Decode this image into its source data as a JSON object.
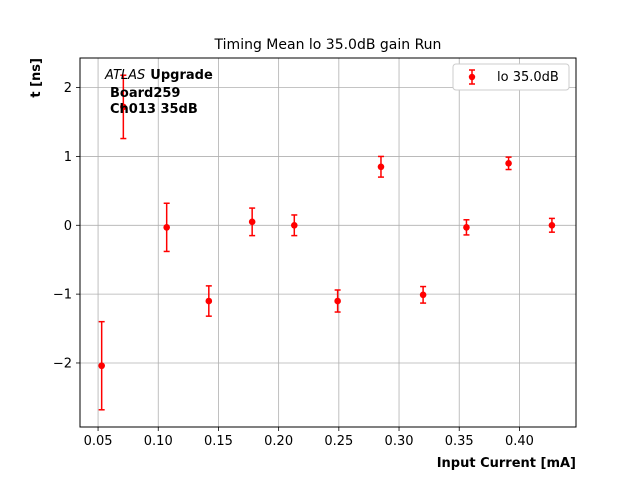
{
  "chart_data": {
    "type": "scatter",
    "title": "Timing Mean lo 35.0dB gain Run",
    "xlabel": "Input Current [mA]",
    "ylabel": "t [ns]",
    "xlim": [
      0.035,
      0.447
    ],
    "ylim": [
      -2.93,
      2.43
    ],
    "xticks": [
      0.05,
      0.1,
      0.15,
      0.2,
      0.25,
      0.3,
      0.35,
      0.4
    ],
    "xtick_labels": [
      "0.05",
      "0.10",
      "0.15",
      "0.20",
      "0.25",
      "0.30",
      "0.35",
      "0.40"
    ],
    "yticks": [
      -2,
      -1,
      0,
      1,
      2
    ],
    "ytick_labels": [
      "−2",
      "−1",
      "0",
      "1",
      "2"
    ],
    "grid": true,
    "legend": {
      "position": "top-right",
      "label": "lo 35.0dB"
    },
    "annotation": {
      "experiment": "ATLAS",
      "tag": "Upgrade",
      "line2": "Board259",
      "line3": "Ch013 35dB"
    },
    "series": [
      {
        "name": "lo 35.0dB",
        "color": "#ff0000",
        "points": [
          {
            "x": 0.053,
            "y": -2.04,
            "err": 0.64
          },
          {
            "x": 0.071,
            "y": 1.72,
            "err": 0.46
          },
          {
            "x": 0.107,
            "y": -0.03,
            "err": 0.35
          },
          {
            "x": 0.142,
            "y": -1.1,
            "err": 0.22
          },
          {
            "x": 0.178,
            "y": 0.05,
            "err": 0.2
          },
          {
            "x": 0.213,
            "y": 0.0,
            "err": 0.15
          },
          {
            "x": 0.249,
            "y": -1.1,
            "err": 0.16
          },
          {
            "x": 0.285,
            "y": 0.85,
            "err": 0.15
          },
          {
            "x": 0.32,
            "y": -1.01,
            "err": 0.12
          },
          {
            "x": 0.356,
            "y": -0.03,
            "err": 0.11
          },
          {
            "x": 0.391,
            "y": 0.9,
            "err": 0.09
          },
          {
            "x": 0.427,
            "y": 0.0,
            "err": 0.1
          }
        ]
      }
    ]
  }
}
